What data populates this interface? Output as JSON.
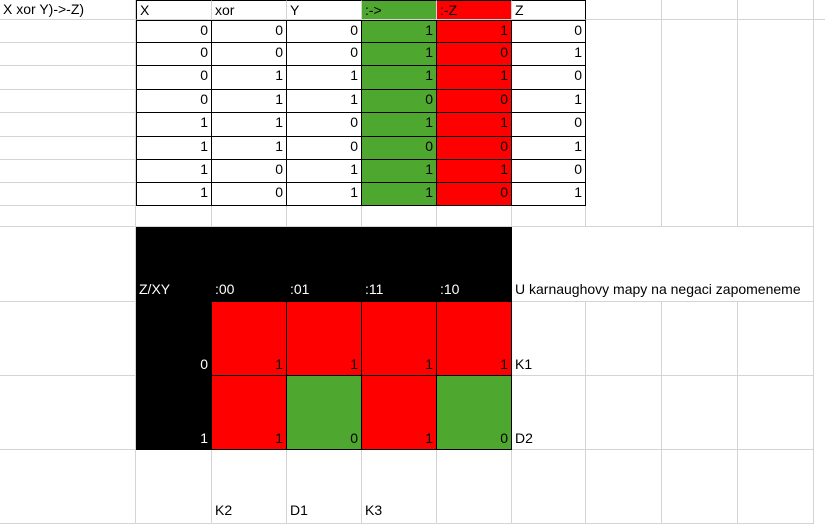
{
  "a1_text": "X xor Y)->-Z)",
  "truth_table": {
    "headers": [
      "X",
      "xor",
      "Y",
      ":->",
      ":-Z",
      "Z"
    ],
    "rows": [
      [
        "0",
        "0",
        "0",
        "1",
        "1",
        "0"
      ],
      [
        "0",
        "0",
        "0",
        "1",
        "0",
        "1"
      ],
      [
        "0",
        "1",
        "1",
        "1",
        "1",
        "0"
      ],
      [
        "0",
        "1",
        "1",
        "0",
        "0",
        "1"
      ],
      [
        "1",
        "1",
        "0",
        "1",
        "1",
        "0"
      ],
      [
        "1",
        "1",
        "0",
        "0",
        "0",
        "1"
      ],
      [
        "1",
        "0",
        "1",
        "1",
        "1",
        "0"
      ],
      [
        "1",
        "0",
        "1",
        "1",
        "0",
        "1"
      ]
    ]
  },
  "karnaugh": {
    "corner": "Z/XY",
    "col_headers": [
      ":00",
      ":01",
      ":11",
      ":10"
    ],
    "note": "U karnaughovy mapy na negaci zapomeneme",
    "row_labels": [
      "0",
      "1"
    ],
    "values": [
      [
        "1",
        "1",
        "1",
        "1"
      ],
      [
        "1",
        "0",
        "1",
        "0"
      ]
    ],
    "side_labels": [
      "K1",
      "D2"
    ],
    "bottom_labels": [
      "K2",
      "D1",
      "K3"
    ]
  },
  "colors": {
    "green": "#4ea72e",
    "red": "#ff0000",
    "black": "#000000"
  }
}
